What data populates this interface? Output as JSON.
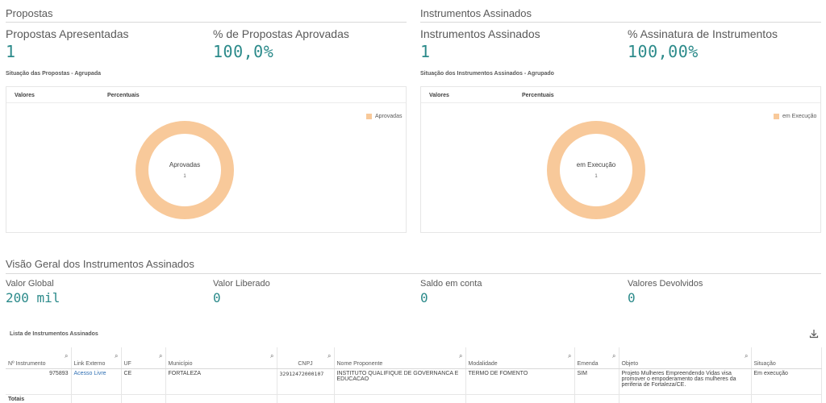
{
  "propostas": {
    "section_title": "Propostas",
    "kpi1_label": "Propostas Apresentadas",
    "kpi1_value": "1",
    "kpi2_label": "% de Propostas Aprovadas",
    "kpi2_value": "100,0%",
    "chart_title": "Situação das Propostas - Agrupada",
    "col_valores": "Valores",
    "col_percentuais": "Percentuais",
    "legend": "Aprovadas",
    "donut_label": "Aprovadas",
    "donut_count": "1"
  },
  "instrumentos": {
    "section_title": "Instrumentos Assinados",
    "kpi1_label": "Instrumentos Assinados",
    "kpi1_value": "1",
    "kpi2_label": "% Assinatura de Instrumentos",
    "kpi2_value": "100,00%",
    "chart_title": "Situação dos Instrumentos Assinados - Agrupado",
    "col_valores": "Valores",
    "col_percentuais": "Percentuais",
    "legend": "em Execução",
    "donut_label": "em Execução",
    "donut_count": "1"
  },
  "visao": {
    "section_title": "Visão Geral dos Instrumentos Assinados",
    "valor_global_label": "Valor Global",
    "valor_global_value": "200 mil",
    "valor_liberado_label": "Valor Liberado",
    "valor_liberado_value": "0",
    "saldo_label": "Saldo em conta",
    "saldo_value": "0",
    "devolvidos_label": "Valores Devolvidos",
    "devolvidos_value": "0"
  },
  "lista": {
    "title": "Lista de Instrumentos Assinados",
    "headers": [
      "Nº Instrumento",
      "Link Externo",
      "UF",
      "Município",
      "CNPJ",
      "Nome Proponente",
      "Modalidade",
      "Emenda",
      "Objeto",
      "Situação"
    ],
    "row": {
      "instrumento": "975893",
      "link": "Acesso Livre",
      "uf": "CE",
      "municipio": "FORTALEZA",
      "cnpj": "32912472000107",
      "proponente": "INSTITUTO QUALIFIQUE DE GOVERNANCA E EDUCACAO",
      "modalidade": "TERMO DE FOMENTO",
      "emenda": "SIM",
      "objeto": "Projeto Mulheres Empreendendo Vidas visa promover o empoderamento das mulheres da periferia de Fortaleza/CE.",
      "situacao": "Em execução"
    },
    "totais": "Totais"
  },
  "colors": {
    "accent": "#2b8a8a",
    "donut": "#f8c99a",
    "link": "#2f6fb3"
  }
}
